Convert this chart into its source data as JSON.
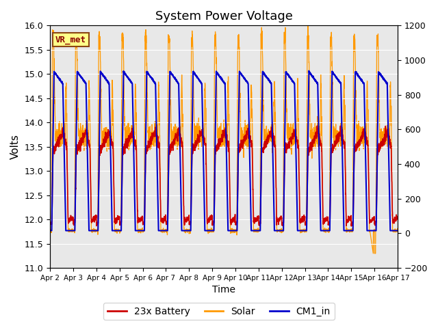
{
  "title": "System Power Voltage",
  "ylabel_left": "Volts",
  "xlabel": "Time",
  "ylim_left": [
    11.0,
    16.0
  ],
  "ylim_right": [
    -200,
    1200
  ],
  "yticks_left": [
    11.0,
    11.5,
    12.0,
    12.5,
    13.0,
    13.5,
    14.0,
    14.5,
    15.0,
    15.5,
    16.0
  ],
  "yticks_right": [
    -200,
    0,
    200,
    400,
    600,
    800,
    1000,
    1200
  ],
  "x_ticklabels": [
    "Apr 2",
    "Apr 3",
    "Apr 4",
    "Apr 5",
    "Apr 6",
    "Apr 7",
    "Apr 8",
    "Apr 9",
    "Apr 10",
    "Apr 11",
    "Apr 12",
    "Apr 13",
    "Apr 14",
    "Apr 15",
    "Apr 16",
    "Apr 17"
  ],
  "legend_labels": [
    "23x Battery",
    "Solar",
    "CM1_in"
  ],
  "legend_colors": [
    "#cc0000",
    "#ff9900",
    "#0000cc"
  ],
  "vr_met_text": "VR_met",
  "bg_color": "#e8e8e8",
  "fig_bg_color": "#ffffff",
  "n_days": 15,
  "pts_per_day": 200
}
